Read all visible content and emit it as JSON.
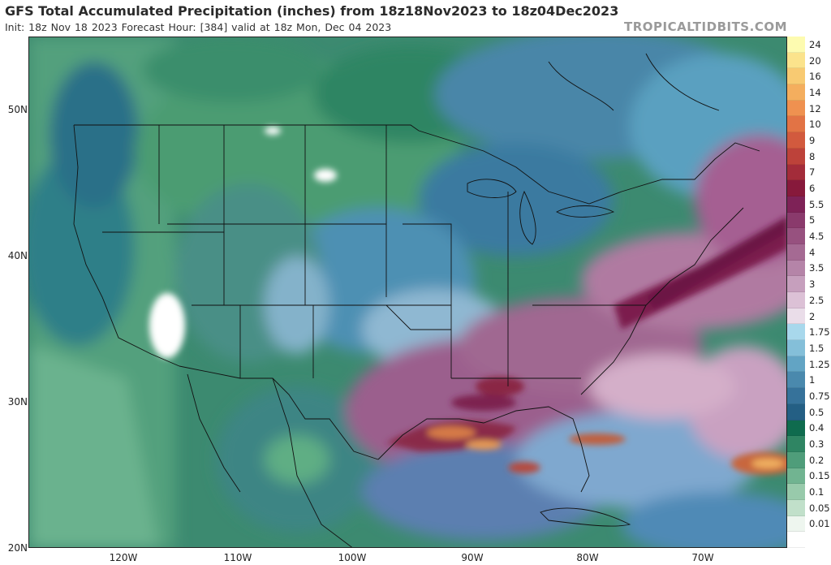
{
  "header": {
    "title": "GFS Total Accumulated Precipitation (inches) from 18z18Nov2023 to 18z04Dec2023",
    "subtitle": "Init: 18z Nov 18 2023   Forecast Hour: [384]   valid at 18z Mon, Dec 04 2023",
    "brand": "TROPICALTIDBITS.COM"
  },
  "axes": {
    "lat_labels": [
      "50N",
      "40N",
      "30N",
      "20N"
    ],
    "lon_labels": [
      "120W",
      "110W",
      "100W",
      "90W",
      "80W",
      "70W"
    ]
  },
  "legend": {
    "items": [
      {
        "label": "24",
        "color": "#fdfbb0"
      },
      {
        "label": "20",
        "color": "#fbe38c"
      },
      {
        "label": "16",
        "color": "#f8ca72"
      },
      {
        "label": "14",
        "color": "#f4ae5e"
      },
      {
        "label": "12",
        "color": "#ef9150"
      },
      {
        "label": "10",
        "color": "#e27345"
      },
      {
        "label": "9",
        "color": "#d25a3e"
      },
      {
        "label": "8",
        "color": "#bd423a"
      },
      {
        "label": "7",
        "color": "#a32c3a"
      },
      {
        "label": "6",
        "color": "#87193b"
      },
      {
        "label": "5.5",
        "color": "#7e2257"
      },
      {
        "label": "5",
        "color": "#8a3a6c"
      },
      {
        "label": "4.5",
        "color": "#97517f"
      },
      {
        "label": "4",
        "color": "#a56a93"
      },
      {
        "label": "3.5",
        "color": "#b584a8"
      },
      {
        "label": "3",
        "color": "#c69fbd"
      },
      {
        "label": "2.5",
        "color": "#dcc1d6"
      },
      {
        "label": "2",
        "color": "#eadde9"
      },
      {
        "label": "1.75",
        "color": "#a8d8ec"
      },
      {
        "label": "1.5",
        "color": "#84bfd9"
      },
      {
        "label": "1.25",
        "color": "#62a4c4"
      },
      {
        "label": "1",
        "color": "#4a89ad"
      },
      {
        "label": "0.75",
        "color": "#36729a"
      },
      {
        "label": "0.5",
        "color": "#245f84"
      },
      {
        "label": "0.4",
        "color": "#0f6b4e"
      },
      {
        "label": "0.3",
        "color": "#2f8563"
      },
      {
        "label": "0.2",
        "color": "#4f9d7a"
      },
      {
        "label": "0.15",
        "color": "#71b491"
      },
      {
        "label": "0.1",
        "color": "#98caab"
      },
      {
        "label": "0.05",
        "color": "#c1e0ca"
      },
      {
        "label": "0.01",
        "color": "#eef6ef"
      },
      {
        "label": "",
        "color": "#ffffff"
      }
    ]
  }
}
